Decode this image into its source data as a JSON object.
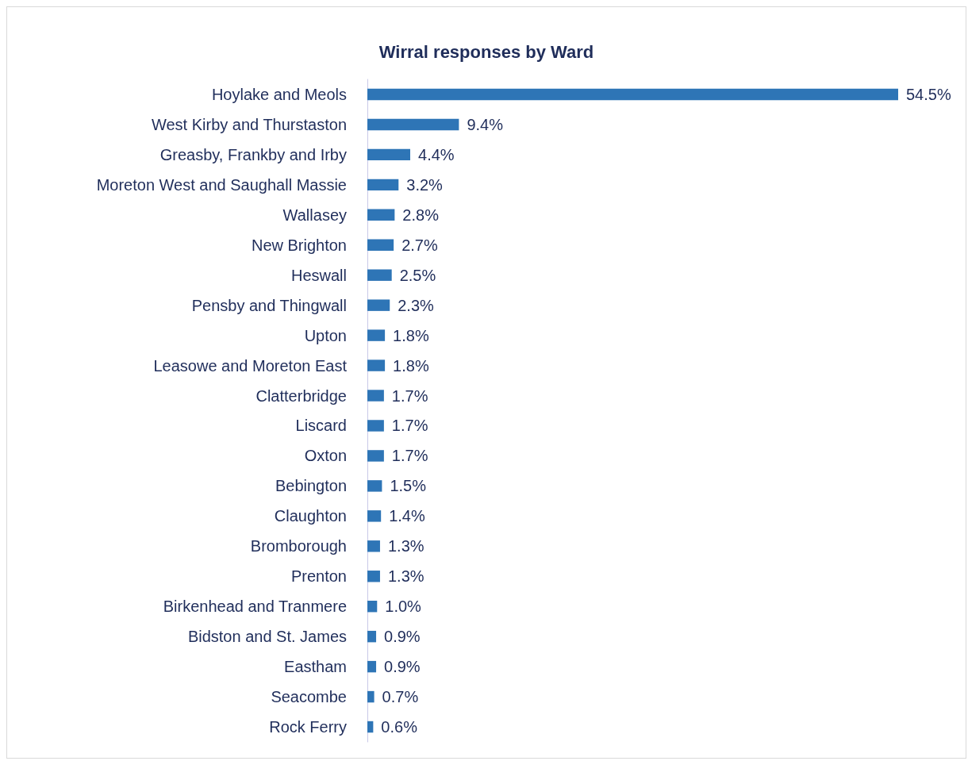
{
  "chart_data": {
    "type": "bar",
    "orientation": "horizontal",
    "title": "Wirral responses by Ward",
    "categories": [
      "Hoylake and Meols",
      "West Kirby and Thurstaston",
      "Greasby, Frankby and Irby",
      "Moreton West and Saughall Massie",
      "Wallasey",
      "New Brighton",
      "Heswall",
      "Pensby and Thingwall",
      "Upton",
      "Leasowe and Moreton East",
      "Clatterbridge",
      "Liscard",
      "Oxton",
      "Bebington",
      "Claughton",
      "Bromborough",
      "Prenton",
      "Birkenhead and Tranmere",
      "Bidston and St. James",
      "Eastham",
      "Seacombe",
      "Rock Ferry"
    ],
    "values": [
      54.5,
      9.4,
      4.4,
      3.2,
      2.8,
      2.7,
      2.5,
      2.3,
      1.8,
      1.8,
      1.7,
      1.7,
      1.7,
      1.5,
      1.4,
      1.3,
      1.3,
      1.0,
      0.9,
      0.9,
      0.7,
      0.6
    ],
    "value_labels": [
      "54.5%",
      "9.4%",
      "4.4%",
      "3.2%",
      "2.8%",
      "2.7%",
      "2.5%",
      "2.3%",
      "1.8%",
      "1.8%",
      "1.7%",
      "1.7%",
      "1.7%",
      "1.5%",
      "1.4%",
      "1.3%",
      "1.3%",
      "1.0%",
      "0.9%",
      "0.9%",
      "0.7%",
      "0.6%"
    ],
    "color": "#2e75b6"
  }
}
